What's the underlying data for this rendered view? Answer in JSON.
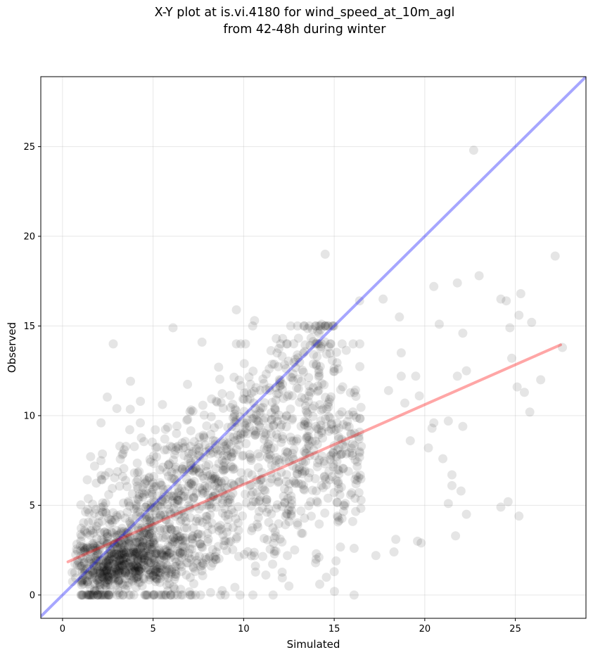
{
  "chart_data": {
    "type": "scatter",
    "title_lines": [
      "X-Y plot at is.vi.4180 for wind_speed_at_10m_agl",
      "from 42-48h during winter"
    ],
    "xlabel": "Simulated",
    "ylabel": "Observed",
    "xlim": [
      -1.2,
      28.9
    ],
    "ylim": [
      -1.3,
      28.9
    ],
    "xticks": [
      0,
      5,
      10,
      15,
      20,
      25
    ],
    "yticks": [
      0,
      5,
      10,
      15,
      20,
      25
    ],
    "grid": true,
    "point_color": "#000000",
    "point_alpha": 0.1,
    "reference_line": {
      "name": "1:1",
      "x": [
        -1.2,
        28.9
      ],
      "y": [
        -1.2,
        28.9
      ],
      "color": "#0000ff",
      "alpha": 0.35
    },
    "fit_line": {
      "x": [
        0.3,
        27.5
      ],
      "y": [
        1.85,
        13.95
      ],
      "color": "#ff0000",
      "alpha": 0.35
    },
    "outlier_points": [
      [
        22.7,
        24.8
      ],
      [
        27.2,
        18.9
      ],
      [
        27.6,
        13.8
      ],
      [
        14.5,
        19.0
      ],
      [
        23.0,
        17.8
      ],
      [
        21.8,
        17.4
      ],
      [
        20.5,
        17.2
      ],
      [
        24.2,
        16.5
      ],
      [
        24.5,
        16.4
      ],
      [
        25.3,
        16.8
      ],
      [
        25.2,
        15.6
      ],
      [
        25.9,
        15.2
      ],
      [
        24.7,
        14.9
      ],
      [
        20.8,
        15.1
      ],
      [
        22.1,
        14.6
      ],
      [
        26.4,
        12.0
      ],
      [
        25.1,
        11.6
      ],
      [
        25.5,
        11.3
      ],
      [
        25.8,
        10.2
      ],
      [
        24.8,
        13.2
      ],
      [
        22.3,
        12.5
      ],
      [
        21.8,
        12.2
      ],
      [
        19.7,
        11.1
      ],
      [
        20.4,
        9.3
      ],
      [
        21.3,
        9.7
      ],
      [
        22.1,
        9.4
      ],
      [
        19.2,
        8.6
      ],
      [
        20.2,
        8.2
      ],
      [
        21.0,
        7.6
      ],
      [
        21.5,
        6.7
      ],
      [
        21.5,
        6.1
      ],
      [
        21.3,
        5.1
      ],
      [
        22.0,
        5.8
      ],
      [
        22.3,
        4.5
      ],
      [
        24.6,
        5.2
      ],
      [
        24.2,
        4.9
      ],
      [
        25.2,
        4.4
      ],
      [
        21.7,
        3.3
      ],
      [
        19.6,
        3.0
      ],
      [
        19.8,
        2.9
      ],
      [
        18.3,
        2.4
      ],
      [
        18.4,
        3.1
      ],
      [
        17.3,
        2.2
      ],
      [
        6.1,
        14.9
      ],
      [
        7.7,
        14.1
      ],
      [
        9.6,
        14.0
      ],
      [
        10.1,
        14.0
      ],
      [
        9.6,
        15.9
      ],
      [
        11.8,
        14.3
      ],
      [
        12.6,
        15.0
      ],
      [
        13.8,
        14.8
      ],
      [
        14.3,
        15.1
      ],
      [
        10.5,
        15.0
      ],
      [
        10.6,
        15.3
      ],
      [
        17.7,
        16.5
      ],
      [
        16.4,
        16.4
      ],
      [
        18.6,
        15.5
      ],
      [
        3.0,
        10.4
      ],
      [
        4.3,
        10.8
      ],
      [
        18.7,
        13.5
      ],
      [
        18.7,
        12.2
      ],
      [
        18.0,
        11.4
      ],
      [
        19.5,
        12.2
      ],
      [
        18.9,
        10.7
      ],
      [
        20.5,
        9.6
      ],
      [
        12.5,
        0.5
      ],
      [
        14.2,
        0.6
      ],
      [
        15.1,
        1.9
      ],
      [
        15.0,
        1.3
      ],
      [
        16.1,
        2.6
      ]
    ],
    "cloud_regions_note": "dense cluster of ~1900 points spanning simulated 0.3-17 and observed 0-14"
  }
}
